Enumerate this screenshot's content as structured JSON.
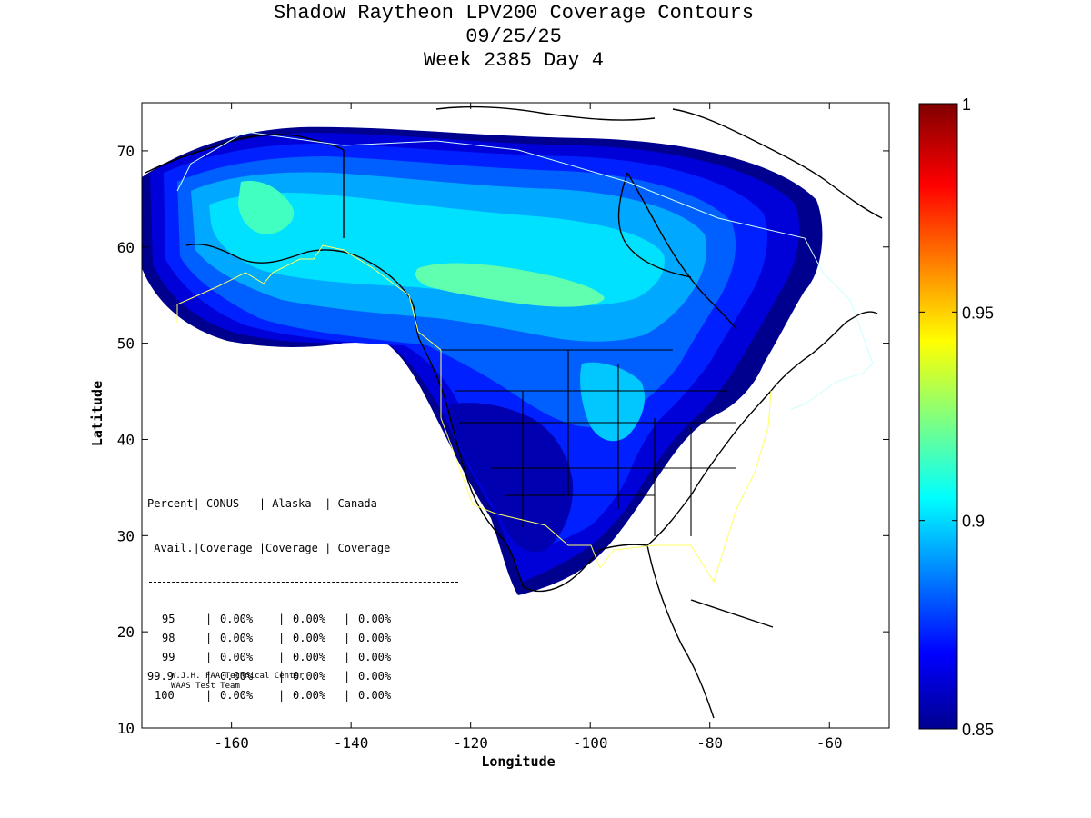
{
  "chart_data": {
    "type": "heatmap",
    "title": "Shadow Raytheon LPV200 Coverage Contours",
    "subtitle_date": "09/25/25",
    "subtitle_week": "Week 2385 Day 4",
    "xlabel": "Longitude",
    "ylabel": "Latitude",
    "xlim": [
      -175,
      -50
    ],
    "ylim": [
      10,
      75
    ],
    "xticks": [
      -160,
      -140,
      -120,
      -100,
      -80,
      -60
    ],
    "yticks": [
      10,
      20,
      30,
      40,
      50,
      60,
      70
    ],
    "colorbar": {
      "range": [
        0.85,
        1.0
      ],
      "tick_values": [
        0.85,
        0.9,
        0.95,
        1.0
      ],
      "tick_labels": [
        "0.85",
        "0.9",
        "0.95",
        "1"
      ],
      "colors": [
        "#00008f",
        "#0000ff",
        "#00ffff",
        "#ffff00",
        "#ff0000",
        "#800000"
      ]
    },
    "coverage_table": {
      "header_row1": "Percent| CONUS   | Alaska  | Canada",
      "header_row2": " Avail.|Coverage |Coverage | Coverage",
      "rows": [
        {
          "avail": "95",
          "conus": "0.00%",
          "alaska": "0.00%",
          "canada": "0.00%"
        },
        {
          "avail": "98",
          "conus": "0.00%",
          "alaska": "0.00%",
          "canada": "0.00%"
        },
        {
          "avail": "99",
          "conus": "0.00%",
          "alaska": "0.00%",
          "canada": "0.00%"
        },
        {
          "avail": "99.9",
          "conus": "0.00%",
          "alaska": "0.00%",
          "canada": "0.00%"
        },
        {
          "avail": "100",
          "conus": "0.00%",
          "alaska": "0.00%",
          "canada": "0.00%"
        }
      ]
    },
    "credit_line1": "W.J.H. FAA Technical Center",
    "credit_line2": "WAAS Test Team"
  }
}
